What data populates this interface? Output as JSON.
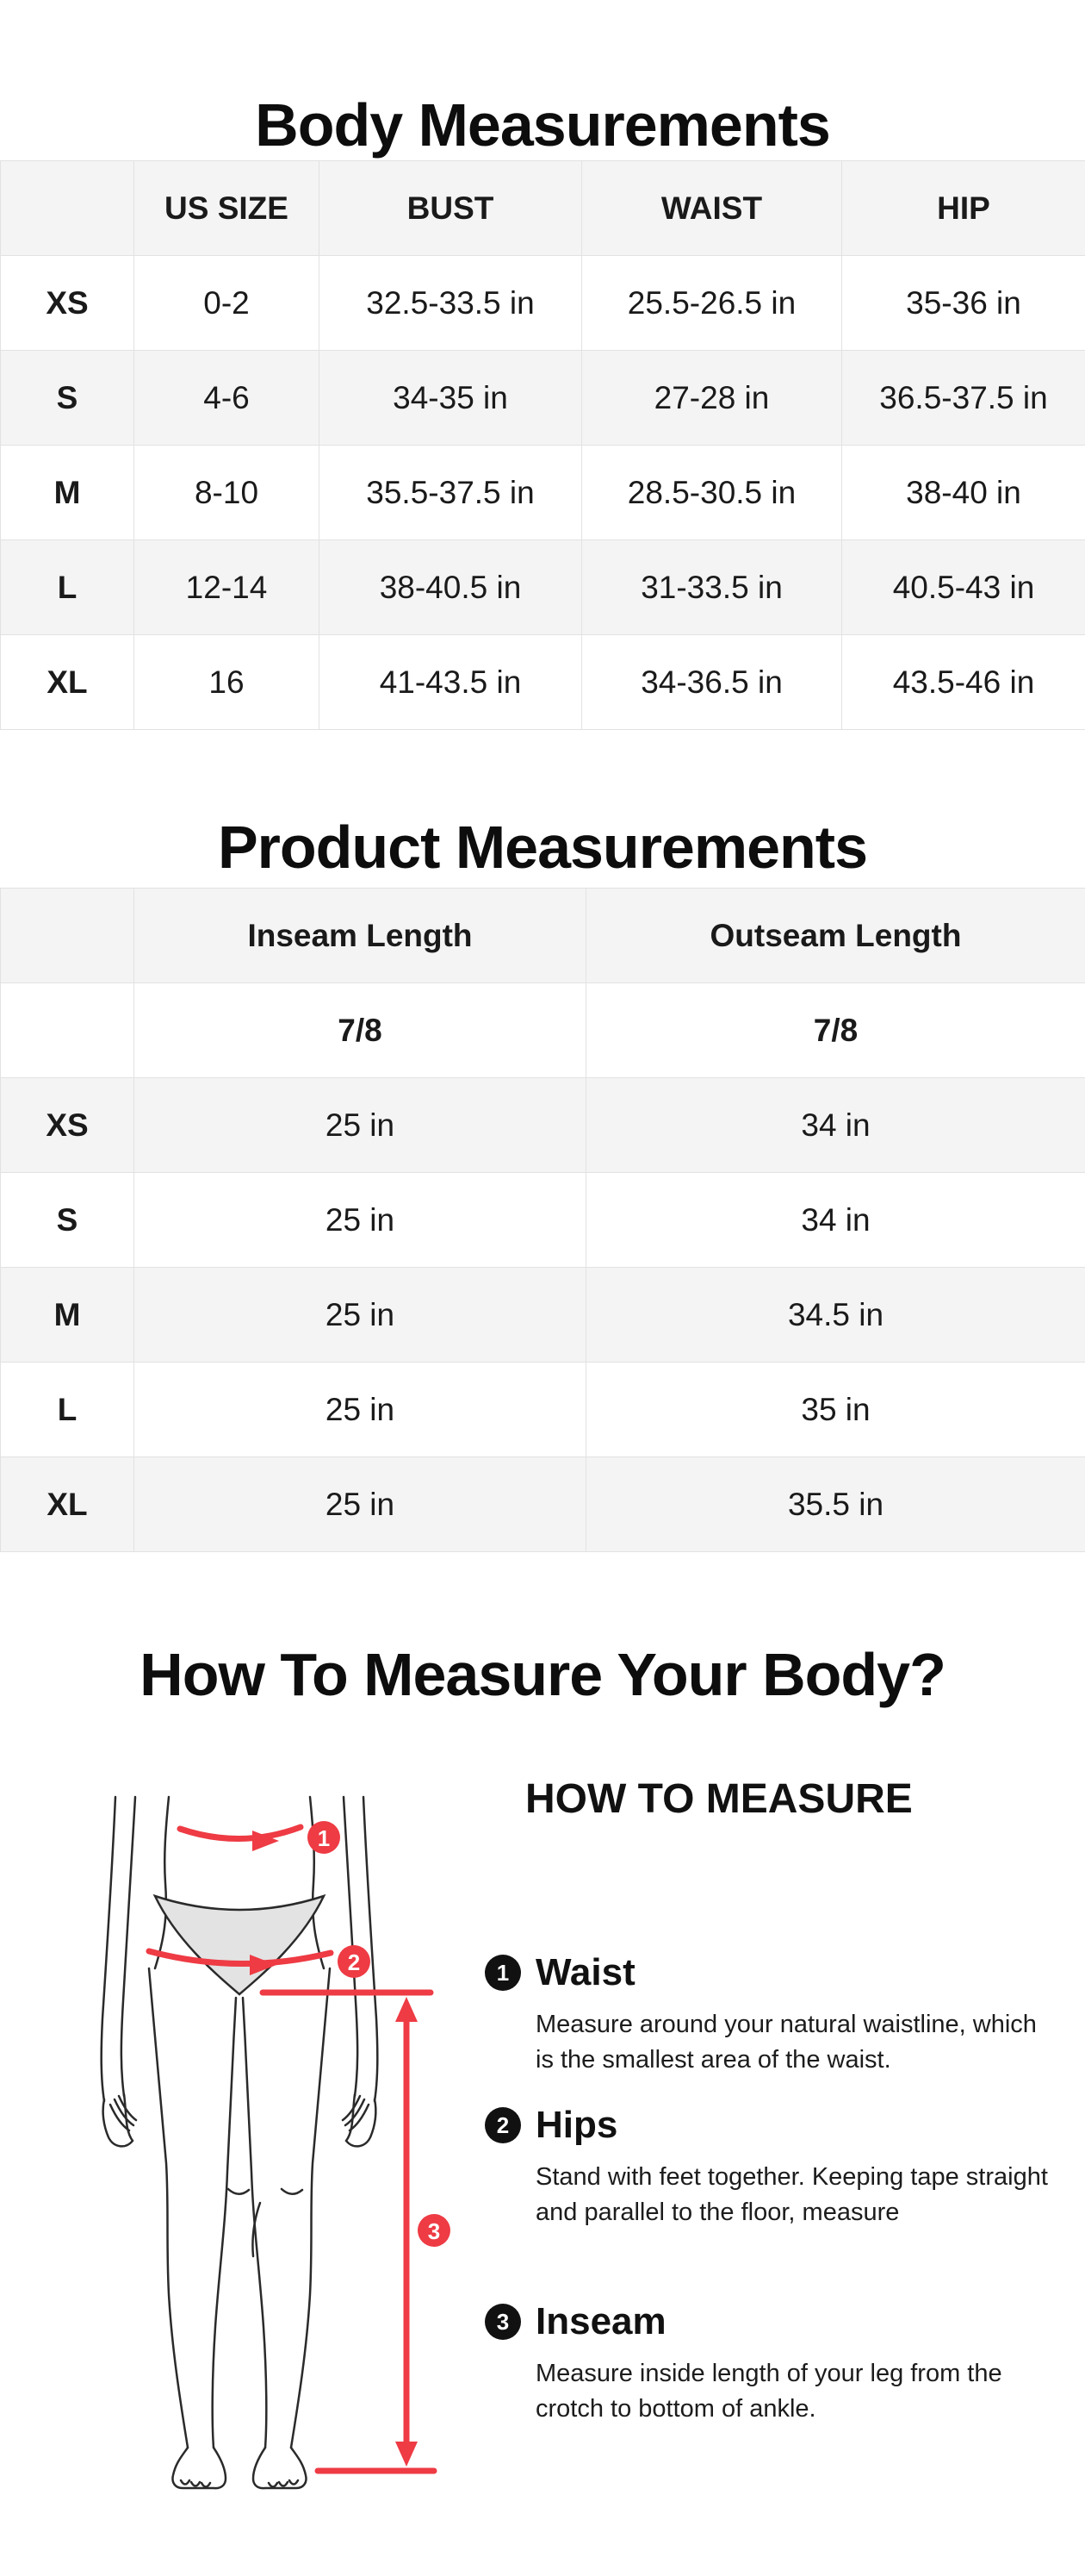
{
  "body_measurements": {
    "title": "Body Measurements",
    "columns": [
      "",
      "US SIZE",
      "BUST",
      "WAIST",
      "HIP"
    ],
    "rows": [
      [
        "XS",
        "0-2",
        "32.5-33.5 in",
        "25.5-26.5 in",
        "35-36 in"
      ],
      [
        "S",
        "4-6",
        "34-35 in",
        "27-28 in",
        "36.5-37.5 in"
      ],
      [
        "M",
        "8-10",
        "35.5-37.5 in",
        "28.5-30.5 in",
        "38-40 in"
      ],
      [
        "L",
        "12-14",
        "38-40.5 in",
        "31-33.5 in",
        "40.5-43 in"
      ],
      [
        "XL",
        "16",
        "41-43.5 in",
        "34-36.5 in",
        "43.5-46 in"
      ]
    ]
  },
  "product_measurements": {
    "title": "Product Measurements",
    "columns": [
      "",
      "Inseam Length",
      "Outseam Length"
    ],
    "subheader_row": [
      "",
      "7/8",
      "7/8"
    ],
    "rows": [
      [
        "XS",
        "25 in",
        "34 in"
      ],
      [
        "S",
        "25 in",
        "34 in"
      ],
      [
        "M",
        "25 in",
        "34.5 in"
      ],
      [
        "L",
        "25 in",
        "35 in"
      ],
      [
        "XL",
        "25 in",
        "35.5 in"
      ]
    ]
  },
  "how_to": {
    "section_title": "How To Measure Your Body?",
    "panel_title": "HOW TO MEASURE",
    "steps": [
      {
        "num": "1",
        "label": "Waist",
        "text": "Measure around your natural waistline, which is the smallest area of the waist."
      },
      {
        "num": "2",
        "label": "Hips",
        "text": "Stand with feet together. Keeping tape straight and parallel to the floor, measure"
      },
      {
        "num": "3",
        "label": "Inseam",
        "text": "Measure inside length of your leg from the crotch to bottom of ankle."
      }
    ]
  },
  "colors": {
    "accent_red": "#ee3b44",
    "row_stripe": "#f4f4f5",
    "table_border": "#e2e2e3",
    "underwear_gray": "#e3e3e3"
  }
}
